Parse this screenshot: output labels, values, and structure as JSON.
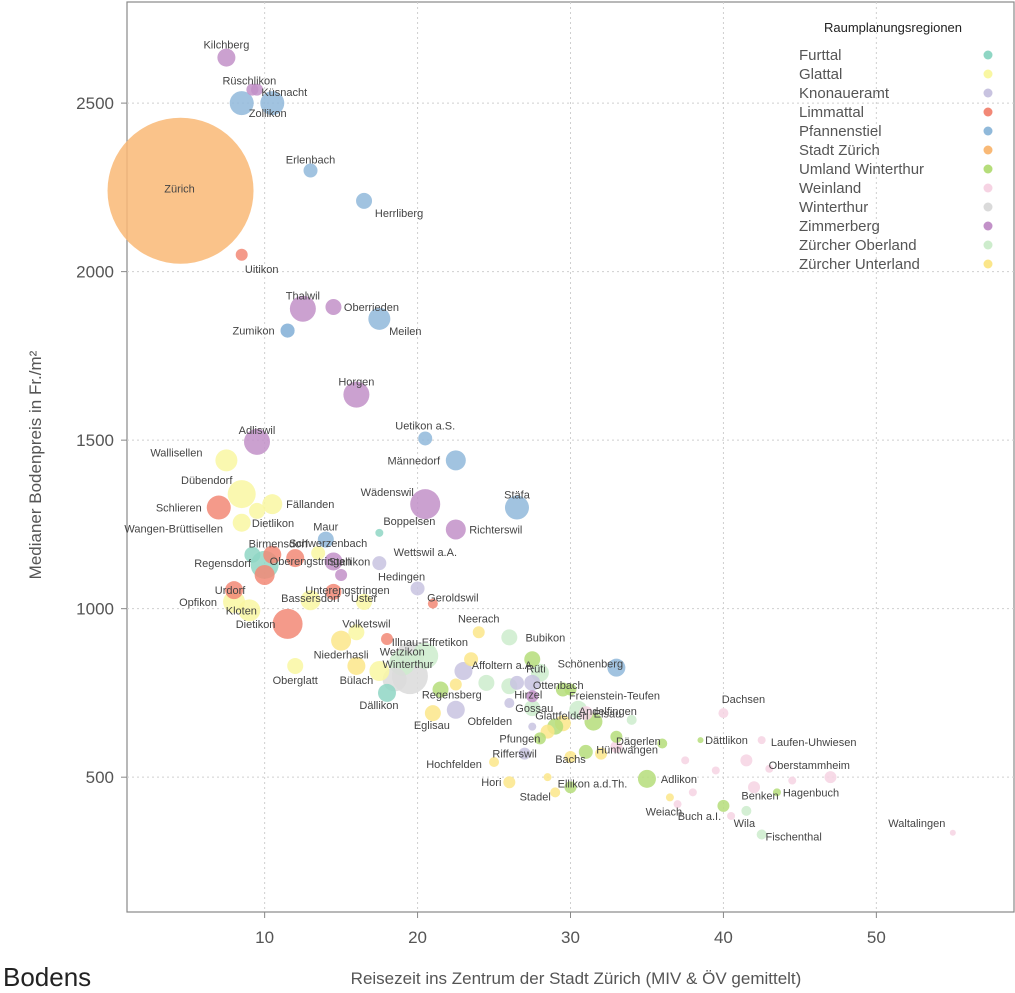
{
  "chart_data": {
    "type": "scatter",
    "xlabel": "Reisezeit ins Zentrum der Stadt Zürich (MIV & ÖV gemittelt)",
    "ylabel": "Medianer Bodenpreis in Fr./m²",
    "xlim": [
      1,
      59
    ],
    "ylim": [
      100,
      2800
    ],
    "xticks": [
      10,
      20,
      30,
      40,
      50
    ],
    "yticks": [
      500,
      1000,
      1500,
      2000,
      2500
    ],
    "grid": true,
    "legend": {
      "title": "Raumplanungsregionen",
      "position": "top-right",
      "entries": [
        {
          "name": "Furttal",
          "color": "#8fd6c4"
        },
        {
          "name": "Glattal",
          "color": "#f9f7a2"
        },
        {
          "name": "Knonaueramt",
          "color": "#c8c3e0"
        },
        {
          "name": "Limmattal",
          "color": "#f28876"
        },
        {
          "name": "Pfannenstiel",
          "color": "#90b9da"
        },
        {
          "name": "Stadt Zürich",
          "color": "#f9b976"
        },
        {
          "name": "Umland Winterthur",
          "color": "#b5dd7a"
        },
        {
          "name": "Weinland",
          "color": "#f6d3e3"
        },
        {
          "name": "Winterthur",
          "color": "#dadada"
        },
        {
          "name": "Zimmerberg",
          "color": "#c291c8"
        },
        {
          "name": "Zürcher Oberland",
          "color": "#cdeccc"
        },
        {
          "name": "Zürcher Unterland",
          "color": "#fbe68a"
        }
      ]
    },
    "points": [
      {
        "label": "Zürich",
        "x": 4.5,
        "y": 2240,
        "size": 73,
        "region": "Stadt Zürich",
        "lx": -1,
        "ly": -2
      },
      {
        "label": "Kilchberg",
        "x": 7.5,
        "y": 2635,
        "size": 9,
        "region": "Zimmerberg",
        "lx": 0,
        "ly": -13
      },
      {
        "label": "Rüschlikon",
        "x": 9.2,
        "y": 2540,
        "size": 6,
        "region": "Zimmerberg",
        "lx": -3,
        "ly": -9
      },
      {
        "label": "Küsnacht",
        "x": 10.5,
        "y": 2500,
        "size": 12,
        "region": "Pfannenstiel",
        "lx": 12,
        "ly": -11
      },
      {
        "label": "Zollikon",
        "x": 8.5,
        "y": 2500,
        "size": 12,
        "region": "Pfannenstiel",
        "lx": 26,
        "ly": 10
      },
      {
        "label": "Erlenbach",
        "x": 13,
        "y": 2300,
        "size": 7,
        "region": "Pfannenstiel",
        "lx": 0,
        "ly": -11
      },
      {
        "label": "Herrliberg",
        "x": 16.5,
        "y": 2210,
        "size": 8,
        "region": "Pfannenstiel",
        "lx": 35,
        "ly": 12
      },
      {
        "label": "Uitikon",
        "x": 8.5,
        "y": 2050,
        "size": 6,
        "region": "Limmattal",
        "lx": 20,
        "ly": 14
      },
      {
        "label": "Thalwil",
        "x": 12.5,
        "y": 1890,
        "size": 13,
        "region": "Zimmerberg",
        "lx": 0,
        "ly": -13
      },
      {
        "label": "Oberrieden",
        "x": 14.5,
        "y": 1895,
        "size": 8,
        "region": "Zimmerberg",
        "lx": 38,
        "ly": 0
      },
      {
        "label": "Zumikon",
        "x": 11.5,
        "y": 1825,
        "size": 7,
        "region": "Pfannenstiel",
        "lx": -34,
        "ly": 0
      },
      {
        "label": "Meilen",
        "x": 17.5,
        "y": 1860,
        "size": 11,
        "region": "Pfannenstiel",
        "lx": 26,
        "ly": 12
      },
      {
        "label": "Horgen",
        "x": 16,
        "y": 1635,
        "size": 13,
        "region": "Zimmerberg",
        "lx": 0,
        "ly": -13
      },
      {
        "label": "Adliswil",
        "x": 9.5,
        "y": 1495,
        "size": 13,
        "region": "Zimmerberg",
        "lx": 0,
        "ly": -12
      },
      {
        "label": "Uetikon a.S.",
        "x": 20.5,
        "y": 1505,
        "size": 7,
        "region": "Pfannenstiel",
        "lx": 0,
        "ly": -13
      },
      {
        "label": "Männedorf",
        "x": 22.5,
        "y": 1440,
        "size": 10,
        "region": "Pfannenstiel",
        "lx": -42,
        "ly": 0
      },
      {
        "label": "Wallisellen",
        "x": 7.5,
        "y": 1440,
        "size": 11,
        "region": "Glattal",
        "lx": -50,
        "ly": -8
      },
      {
        "label": "Dübendorf",
        "x": 8.5,
        "y": 1340,
        "size": 14,
        "region": "Glattal",
        "lx": -35,
        "ly": -14
      },
      {
        "label": "Fällanden",
        "x": 10.5,
        "y": 1310,
        "size": 10,
        "region": "Glattal",
        "lx": 38,
        "ly": 0
      },
      {
        "label": "Schlieren",
        "x": 7,
        "y": 1300,
        "size": 12,
        "region": "Limmattal",
        "lx": -40,
        "ly": 0
      },
      {
        "label": "Dietlikon",
        "x": 9.5,
        "y": 1290,
        "size": 8,
        "region": "Glattal",
        "lx": 16,
        "ly": 12
      },
      {
        "label": "Wädenswil",
        "x": 20.5,
        "y": 1310,
        "size": 15,
        "region": "Zimmerberg",
        "lx": -38,
        "ly": -12
      },
      {
        "label": "Stäfa",
        "x": 26.5,
        "y": 1300,
        "size": 12,
        "region": "Pfannenstiel",
        "lx": 0,
        "ly": -13
      },
      {
        "label": "Wangen-Brüttisellen",
        "x": 8.5,
        "y": 1255,
        "size": 9,
        "region": "Glattal",
        "lx": -68,
        "ly": 6
      },
      {
        "label": "Richterswil",
        "x": 22.5,
        "y": 1235,
        "size": 10,
        "region": "Zimmerberg",
        "lx": 40,
        "ly": 0
      },
      {
        "label": "Boppelsen",
        "x": 17.5,
        "y": 1225,
        "size": 4,
        "region": "Furttal",
        "lx": 30,
        "ly": -12
      },
      {
        "label": "Maur",
        "x": 14,
        "y": 1205,
        "size": 8,
        "region": "Pfannenstiel",
        "lx": 0,
        "ly": -13
      },
      {
        "label": "Birmensdorf",
        "x": 10.5,
        "y": 1160,
        "size": 9,
        "region": "Limmattal",
        "lx": 6,
        "ly": -11
      },
      {
        "label": "Schwerzenbach",
        "x": 13.5,
        "y": 1165,
        "size": 7,
        "region": "Glattal",
        "lx": 10,
        "ly": -10
      },
      {
        "label": "Wettswil a.A.",
        "x": 17.5,
        "y": 1135,
        "size": 7,
        "region": "Knonaueramt",
        "lx": 46,
        "ly": -11
      },
      {
        "label": "Stallikon",
        "x": 14.5,
        "y": 1140,
        "size": 9,
        "region": "Zimmerberg",
        "lx": 16,
        "ly": 0
      },
      {
        "label": "Regensdorf",
        "x": 10,
        "y": 1130,
        "size": 14,
        "region": "Furttal",
        "lx": -42,
        "ly": -2
      },
      {
        "label": "Oberengstringen",
        "x": 10,
        "y": 1100,
        "size": 10,
        "region": "Limmattal",
        "lx": 46,
        "ly": -14
      },
      {
        "label": "Hedingen",
        "x": 20,
        "y": 1060,
        "size": 7,
        "region": "Knonaueramt",
        "lx": -16,
        "ly": -12
      },
      {
        "label": "Urdorf",
        "x": 8,
        "y": 1055,
        "size": 9,
        "region": "Limmattal",
        "lx": -4,
        "ly": 0
      },
      {
        "label": "Unterengstringen",
        "x": 14.5,
        "y": 1050,
        "size": 8,
        "region": "Limmattal",
        "lx": 14,
        "ly": -2
      },
      {
        "label": "Opfikon",
        "x": 8,
        "y": 1020,
        "size": 11,
        "region": "Glattal",
        "lx": -36,
        "ly": 0
      },
      {
        "label": "Bassersdorf",
        "x": 13,
        "y": 1025,
        "size": 10,
        "region": "Glattal",
        "lx": 0,
        "ly": -2
      },
      {
        "label": "Uster",
        "x": 16.5,
        "y": 1020,
        "size": 8,
        "region": "Glattal",
        "lx": 0,
        "ly": -4
      },
      {
        "label": "Kloten",
        "x": 9,
        "y": 995,
        "size": 11,
        "region": "Glattal",
        "lx": -8,
        "ly": 0
      },
      {
        "label": "Geroldswil",
        "x": 21,
        "y": 1015,
        "size": 5,
        "region": "Limmattal",
        "lx": 20,
        "ly": -6
      },
      {
        "label": "Dietikon",
        "x": 11.5,
        "y": 955,
        "size": 15,
        "region": "Limmattal",
        "lx": -32,
        "ly": 0
      },
      {
        "label": "Neerach",
        "x": 24,
        "y": 930,
        "size": 6,
        "region": "Zürcher Unterland",
        "lx": 0,
        "ly": -14
      },
      {
        "label": "Volketswil",
        "x": 16,
        "y": 930,
        "size": 8,
        "region": "Glattal",
        "lx": 10,
        "ly": -9
      },
      {
        "label": "Bubikon",
        "x": 26,
        "y": 915,
        "size": 8,
        "region": "Zürcher Oberland",
        "lx": 36,
        "ly": 0
      },
      {
        "label": "Niederhasli",
        "x": 15,
        "y": 905,
        "size": 10,
        "region": "Zürcher Unterland",
        "lx": 0,
        "ly": 14
      },
      {
        "label": "Illnau-Effretikon",
        "x": 19.5,
        "y": 860,
        "size": 14,
        "region": "Winterthur",
        "lx": 20,
        "ly": -14
      },
      {
        "label": "Wetzikon",
        "x": 19,
        "y": 840,
        "size": 13,
        "region": "Zürcher Oberland",
        "lx": 0,
        "ly": -11
      },
      {
        "label": "Bülach",
        "x": 16,
        "y": 830,
        "size": 9,
        "region": "Zürcher Unterland",
        "lx": 0,
        "ly": 14
      },
      {
        "label": "Oberglatt",
        "x": 12,
        "y": 830,
        "size": 8,
        "region": "Glattal",
        "lx": 0,
        "ly": 14
      },
      {
        "label": "Schönenberg",
        "x": 33,
        "y": 825,
        "size": 9,
        "region": "Pfannenstiel",
        "lx": -26,
        "ly": -4
      },
      {
        "label": "Affoltern a.A.",
        "x": 23,
        "y": 815,
        "size": 9,
        "region": "Knonaueramt",
        "lx": 40,
        "ly": -6
      },
      {
        "label": "Rüti",
        "x": 28,
        "y": 810,
        "size": 9,
        "region": "Zürcher Oberland",
        "lx": -4,
        "ly": -4
      },
      {
        "label": "Winterthur",
        "x": 19.5,
        "y": 800,
        "size": 18,
        "region": "Winterthur",
        "lx": -2,
        "ly": -12
      },
      {
        "label": "Ottenbach",
        "x": 27.5,
        "y": 780,
        "size": 8,
        "region": "Knonaueramt",
        "lx": 26,
        "ly": 2
      },
      {
        "label": "Regensberg",
        "x": 22.5,
        "y": 775,
        "size": 6,
        "region": "Zürcher Unterland",
        "lx": -4,
        "ly": 10
      },
      {
        "label": "Freienstein-Teufen",
        "x": 30,
        "y": 760,
        "size": 6,
        "region": "Umland Winterthur",
        "lx": 44,
        "ly": 6
      },
      {
        "label": "Dällikon",
        "x": 18,
        "y": 750,
        "size": 9,
        "region": "Furttal",
        "lx": -8,
        "ly": 12
      },
      {
        "label": "Hirzel",
        "x": 27.5,
        "y": 740,
        "size": 6,
        "region": "Zimmerberg",
        "lx": -4,
        "ly": -2
      },
      {
        "label": "Dachsen",
        "x": 40,
        "y": 690,
        "size": 5,
        "region": "Weinland",
        "lx": 20,
        "ly": -14
      },
      {
        "label": "Gossau",
        "x": 27.5,
        "y": 705,
        "size": 8,
        "region": "Zürcher Oberland",
        "lx": 2,
        "ly": 0
      },
      {
        "label": "Obfelden",
        "x": 22.5,
        "y": 700,
        "size": 9,
        "region": "Knonaueramt",
        "lx": 34,
        "ly": 11
      },
      {
        "label": "Andelfingen",
        "x": 31,
        "y": 690,
        "size": 7,
        "region": "Weinland",
        "lx": 22,
        "ly": -2
      },
      {
        "label": "Eglisau",
        "x": 21,
        "y": 690,
        "size": 8,
        "region": "Zürcher Unterland",
        "lx": -1,
        "ly": 12
      },
      {
        "label": "Elsau",
        "x": 31.5,
        "y": 665,
        "size": 9,
        "region": "Umland Winterthur",
        "lx": 14,
        "ly": -8
      },
      {
        "label": "Glattfelden",
        "x": 29.5,
        "y": 660,
        "size": 8,
        "region": "Zürcher Unterland",
        "lx": -1,
        "ly": -8
      },
      {
        "label": "Dättlikon",
        "x": 38.5,
        "y": 610,
        "size": 3,
        "region": "Umland Winterthur",
        "lx": 26,
        "ly": 0
      },
      {
        "label": "Laufen-Uhwiesen",
        "x": 42.5,
        "y": 610,
        "size": 4,
        "region": "Weinland",
        "lx": 52,
        "ly": 2
      },
      {
        "label": "Pfungen",
        "x": 28,
        "y": 615,
        "size": 6,
        "region": "Umland Winterthur",
        "lx": -20,
        "ly": 0
      },
      {
        "label": "Dägerlen",
        "x": 33,
        "y": 590,
        "size": 6,
        "region": "Weinland",
        "lx": 22,
        "ly": -6
      },
      {
        "label": "Hüntwangen",
        "x": 32,
        "y": 570,
        "size": 6,
        "region": "Zürcher Unterland",
        "lx": 26,
        "ly": -4
      },
      {
        "label": "Rifferswil",
        "x": 27,
        "y": 570,
        "size": 6,
        "region": "Knonaueramt",
        "lx": -10,
        "ly": 0
      },
      {
        "label": "Bachs",
        "x": 30,
        "y": 560,
        "size": 6,
        "region": "Zürcher Unterland",
        "lx": 0,
        "ly": 2
      },
      {
        "label": "Hochfelden",
        "x": 25,
        "y": 545,
        "size": 5,
        "region": "Zürcher Unterland",
        "lx": -40,
        "ly": 2
      },
      {
        "label": "Oberstammheim",
        "x": 43,
        "y": 525,
        "size": 4,
        "region": "Weinland",
        "lx": 40,
        "ly": -4
      },
      {
        "label": "Adlikon",
        "x": 35,
        "y": 495,
        "size": 9,
        "region": "Umland Winterthur",
        "lx": 32,
        "ly": 0
      },
      {
        "label": "Hori",
        "x": 26,
        "y": 485,
        "size": 6,
        "region": "Zürcher Unterland",
        "lx": -18,
        "ly": 0
      },
      {
        "label": "Ellikon a.d.Th.",
        "x": 30,
        "y": 470,
        "size": 6,
        "region": "Umland Winterthur",
        "lx": 22,
        "ly": -4
      },
      {
        "label": "Stadel",
        "x": 29,
        "y": 455,
        "size": 5,
        "region": "Zürcher Unterland",
        "lx": -20,
        "ly": 4
      },
      {
        "label": "Benken",
        "x": 42,
        "y": 470,
        "size": 6,
        "region": "Weinland",
        "lx": 6,
        "ly": 8
      },
      {
        "label": "Hagenbuch",
        "x": 43.5,
        "y": 455,
        "size": 4,
        "region": "Umland Winterthur",
        "lx": 34,
        "ly": 0
      },
      {
        "label": "Weiach",
        "x": 36.5,
        "y": 440,
        "size": 4,
        "region": "Zürcher Unterland",
        "lx": -6,
        "ly": 14
      },
      {
        "label": "Buch a.I.",
        "x": 40,
        "y": 415,
        "size": 6,
        "region": "Umland Winterthur",
        "lx": -24,
        "ly": 10
      },
      {
        "label": "Wila",
        "x": 41.5,
        "y": 400,
        "size": 5,
        "region": "Zürcher Oberland",
        "lx": -2,
        "ly": 12
      },
      {
        "label": "Fischenthal",
        "x": 42.5,
        "y": 330,
        "size": 5,
        "region": "Zürcher Oberland",
        "lx": 32,
        "ly": 2
      },
      {
        "label": "Waltalingen",
        "x": 55,
        "y": 335,
        "size": 3,
        "region": "Weinland",
        "lx": -36,
        "ly": -10
      }
    ],
    "extra_points": [
      {
        "x": 9.5,
        "y": 2540,
        "size": 6,
        "region": "Zimmerberg"
      },
      {
        "x": 11.5,
        "y": 1825,
        "size": 7,
        "region": "Pfannenstiel"
      },
      {
        "x": 9.2,
        "y": 1160,
        "size": 8,
        "region": "Furttal"
      },
      {
        "x": 12,
        "y": 1150,
        "size": 9,
        "region": "Limmattal"
      },
      {
        "x": 15,
        "y": 1100,
        "size": 6,
        "region": "Zimmerberg"
      },
      {
        "x": 18,
        "y": 910,
        "size": 6,
        "region": "Limmattal"
      },
      {
        "x": 20.5,
        "y": 860,
        "size": 13,
        "region": "Zürcher Oberland"
      },
      {
        "x": 18.5,
        "y": 790,
        "size": 12,
        "region": "Winterthur"
      },
      {
        "x": 17.5,
        "y": 815,
        "size": 10,
        "region": "Glattal"
      },
      {
        "x": 21.5,
        "y": 760,
        "size": 8,
        "region": "Umland Winterthur"
      },
      {
        "x": 24.5,
        "y": 780,
        "size": 8,
        "region": "Zürcher Oberland"
      },
      {
        "x": 26,
        "y": 770,
        "size": 8,
        "region": "Zürcher Oberland"
      },
      {
        "x": 23.5,
        "y": 850,
        "size": 7,
        "region": "Zürcher Unterland"
      },
      {
        "x": 27.5,
        "y": 850,
        "size": 8,
        "region": "Umland Winterthur"
      },
      {
        "x": 29.5,
        "y": 760,
        "size": 7,
        "region": "Umland Winterthur"
      },
      {
        "x": 30.5,
        "y": 700,
        "size": 9,
        "region": "Zürcher Oberland"
      },
      {
        "x": 29,
        "y": 650,
        "size": 8,
        "region": "Umland Winterthur"
      },
      {
        "x": 31,
        "y": 575,
        "size": 7,
        "region": "Umland Winterthur"
      },
      {
        "x": 28.5,
        "y": 635,
        "size": 7,
        "region": "Zürcher Unterland"
      },
      {
        "x": 27.5,
        "y": 650,
        "size": 4,
        "region": "Knonaueramt"
      },
      {
        "x": 26.5,
        "y": 780,
        "size": 7,
        "region": "Knonaueramt"
      },
      {
        "x": 33,
        "y": 620,
        "size": 6,
        "region": "Umland Winterthur"
      },
      {
        "x": 34,
        "y": 670,
        "size": 5,
        "region": "Zürcher Oberland"
      },
      {
        "x": 36,
        "y": 600,
        "size": 5,
        "region": "Umland Winterthur"
      },
      {
        "x": 37.5,
        "y": 550,
        "size": 4,
        "region": "Weinland"
      },
      {
        "x": 39.5,
        "y": 520,
        "size": 4,
        "region": "Weinland"
      },
      {
        "x": 41.5,
        "y": 550,
        "size": 6,
        "region": "Weinland"
      },
      {
        "x": 44.5,
        "y": 490,
        "size": 4,
        "region": "Weinland"
      },
      {
        "x": 47,
        "y": 500,
        "size": 6,
        "region": "Weinland"
      },
      {
        "x": 38,
        "y": 455,
        "size": 4,
        "region": "Weinland"
      },
      {
        "x": 37,
        "y": 420,
        "size": 4,
        "region": "Weinland"
      },
      {
        "x": 40.5,
        "y": 385,
        "size": 4,
        "region": "Weinland"
      },
      {
        "x": 28.5,
        "y": 500,
        "size": 4,
        "region": "Zürcher Unterland"
      },
      {
        "x": 26,
        "y": 720,
        "size": 5,
        "region": "Knonaueramt"
      }
    ]
  },
  "stray_text": "Bodens"
}
